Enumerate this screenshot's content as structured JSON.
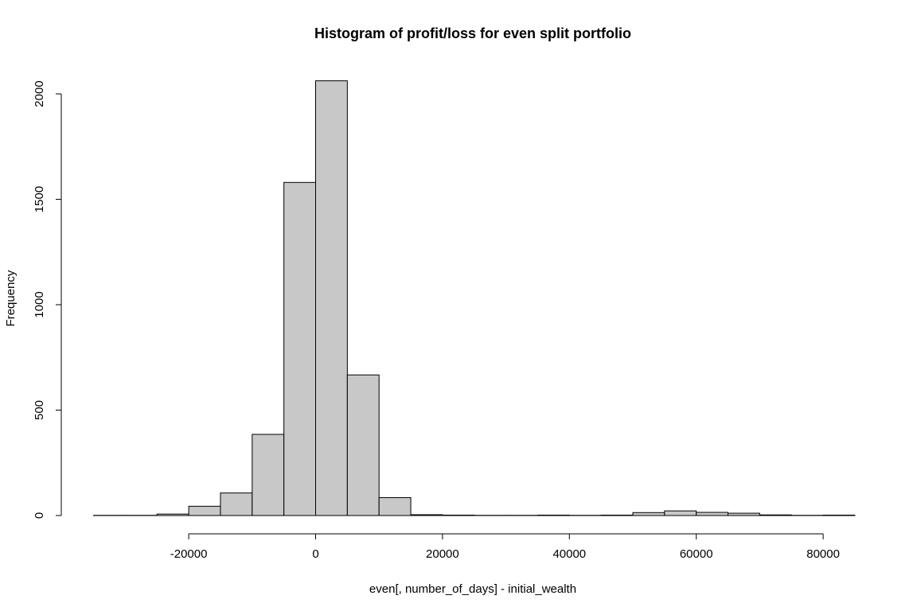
{
  "chart_data": {
    "type": "bar",
    "title": "Histogram of profit/loss for even split portfolio",
    "xlabel": "even[, number_of_days] - initial_wealth",
    "ylabel": "Frequency",
    "xlim": [
      -35000,
      85000
    ],
    "ylim": [
      0,
      2000
    ],
    "x_ticks": [
      -20000,
      0,
      20000,
      40000,
      60000,
      80000
    ],
    "x_tick_labels": [
      "-20000",
      "0",
      "20000",
      "40000",
      "60000",
      "80000"
    ],
    "y_ticks": [
      0,
      500,
      1000,
      1500,
      2000
    ],
    "y_tick_labels": [
      "0",
      "500",
      "1000",
      "1500",
      "2000"
    ],
    "bin_width": 5000,
    "bins": [
      {
        "start": -35000,
        "end": -30000,
        "count": 1
      },
      {
        "start": -30000,
        "end": -25000,
        "count": 1
      },
      {
        "start": -25000,
        "end": -20000,
        "count": 7
      },
      {
        "start": -20000,
        "end": -15000,
        "count": 44
      },
      {
        "start": -15000,
        "end": -10000,
        "count": 107
      },
      {
        "start": -10000,
        "end": -5000,
        "count": 385
      },
      {
        "start": -5000,
        "end": 0,
        "count": 1580
      },
      {
        "start": 0,
        "end": 5000,
        "count": 2062
      },
      {
        "start": 5000,
        "end": 10000,
        "count": 667
      },
      {
        "start": 10000,
        "end": 15000,
        "count": 85
      },
      {
        "start": 15000,
        "end": 20000,
        "count": 4
      },
      {
        "start": 20000,
        "end": 25000,
        "count": 2
      },
      {
        "start": 25000,
        "end": 30000,
        "count": 1
      },
      {
        "start": 30000,
        "end": 35000,
        "count": 1
      },
      {
        "start": 35000,
        "end": 40000,
        "count": 2
      },
      {
        "start": 40000,
        "end": 45000,
        "count": 1
      },
      {
        "start": 45000,
        "end": 50000,
        "count": 2
      },
      {
        "start": 50000,
        "end": 55000,
        "count": 14
      },
      {
        "start": 55000,
        "end": 60000,
        "count": 22
      },
      {
        "start": 60000,
        "end": 65000,
        "count": 15
      },
      {
        "start": 65000,
        "end": 70000,
        "count": 11
      },
      {
        "start": 70000,
        "end": 75000,
        "count": 3
      },
      {
        "start": 75000,
        "end": 80000,
        "count": 1
      },
      {
        "start": 80000,
        "end": 85000,
        "count": 2
      }
    ],
    "bar_color": "#c8c8c8",
    "grid": false,
    "legend": "none"
  }
}
